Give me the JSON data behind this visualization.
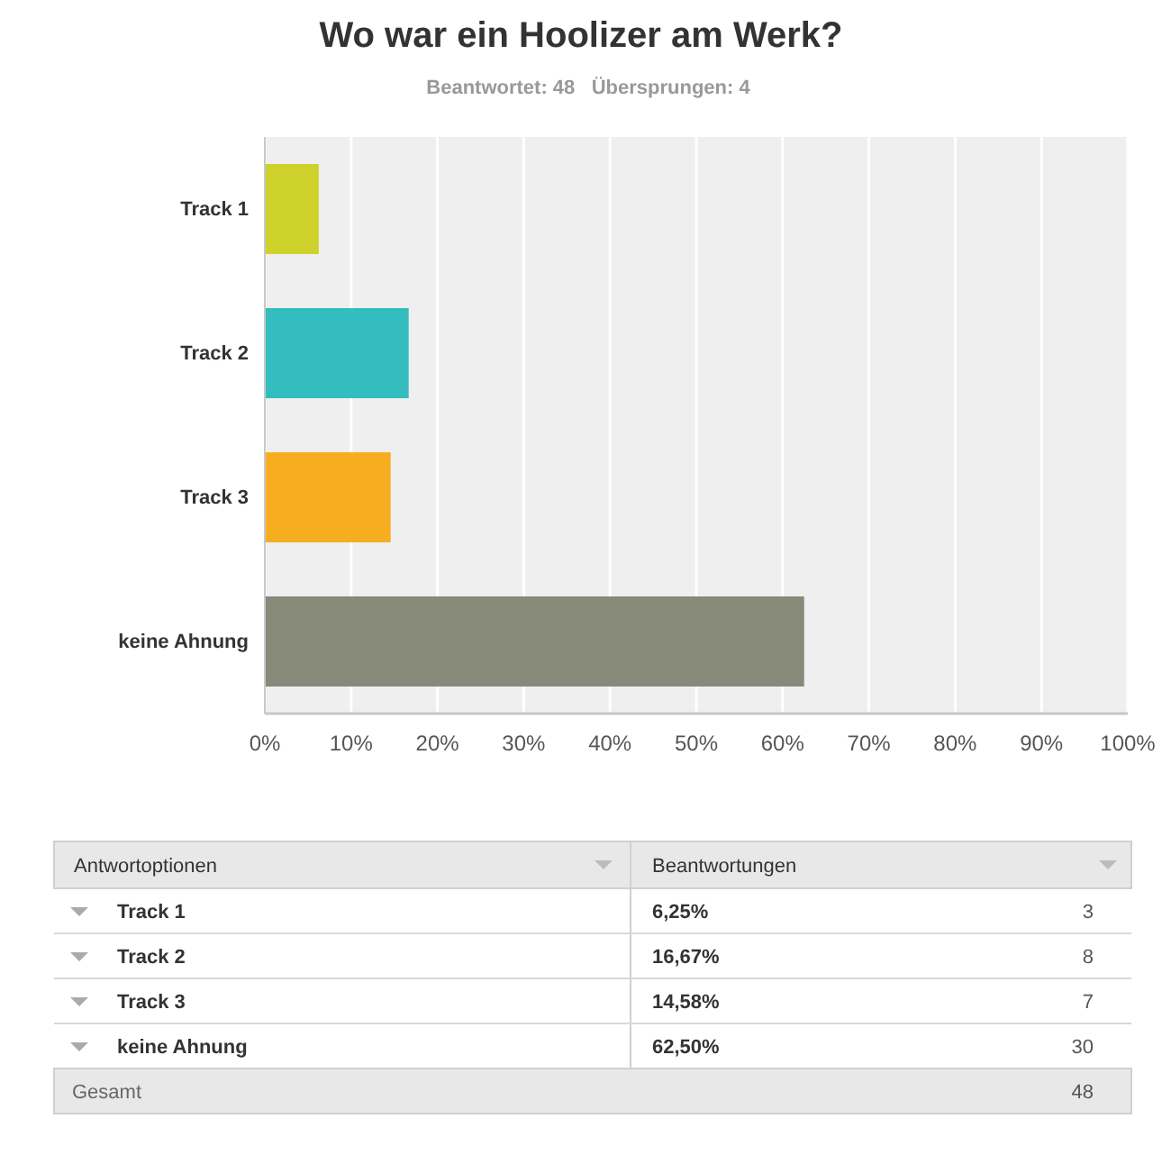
{
  "chart_data": {
    "type": "bar",
    "orientation": "horizontal",
    "title": "Wo war ein Hoolizer am Werk?",
    "subtitle": "Beantwortet: 48   Übersprungen: 4",
    "categories": [
      "Track 1",
      "Track 2",
      "Track 3",
      "keine Ahnung"
    ],
    "values": [
      6.25,
      16.67,
      14.58,
      62.5
    ],
    "colors": [
      "#cfd22a",
      "#34bdbe",
      "#f6ae20",
      "#888a79"
    ],
    "xlim": [
      0,
      100
    ],
    "xticks": [
      {
        "value": 0,
        "label": "0%"
      },
      {
        "value": 10,
        "label": "10%"
      },
      {
        "value": 20,
        "label": "20%"
      },
      {
        "value": 30,
        "label": "30%"
      },
      {
        "value": 40,
        "label": "40%"
      },
      {
        "value": 50,
        "label": "50%"
      },
      {
        "value": 60,
        "label": "60%"
      },
      {
        "value": 70,
        "label": "70%"
      },
      {
        "value": 80,
        "label": "80%"
      },
      {
        "value": 90,
        "label": "90%"
      },
      {
        "value": 100,
        "label": "100%"
      }
    ],
    "grid": "x",
    "annotations": [
      "Antwortoptionen",
      "Beantwortungen",
      "6,25%",
      "3",
      "16,67%",
      "8",
      "14,58%",
      "7",
      "62,50%",
      "30",
      "Gesamt",
      "48"
    ]
  }
}
